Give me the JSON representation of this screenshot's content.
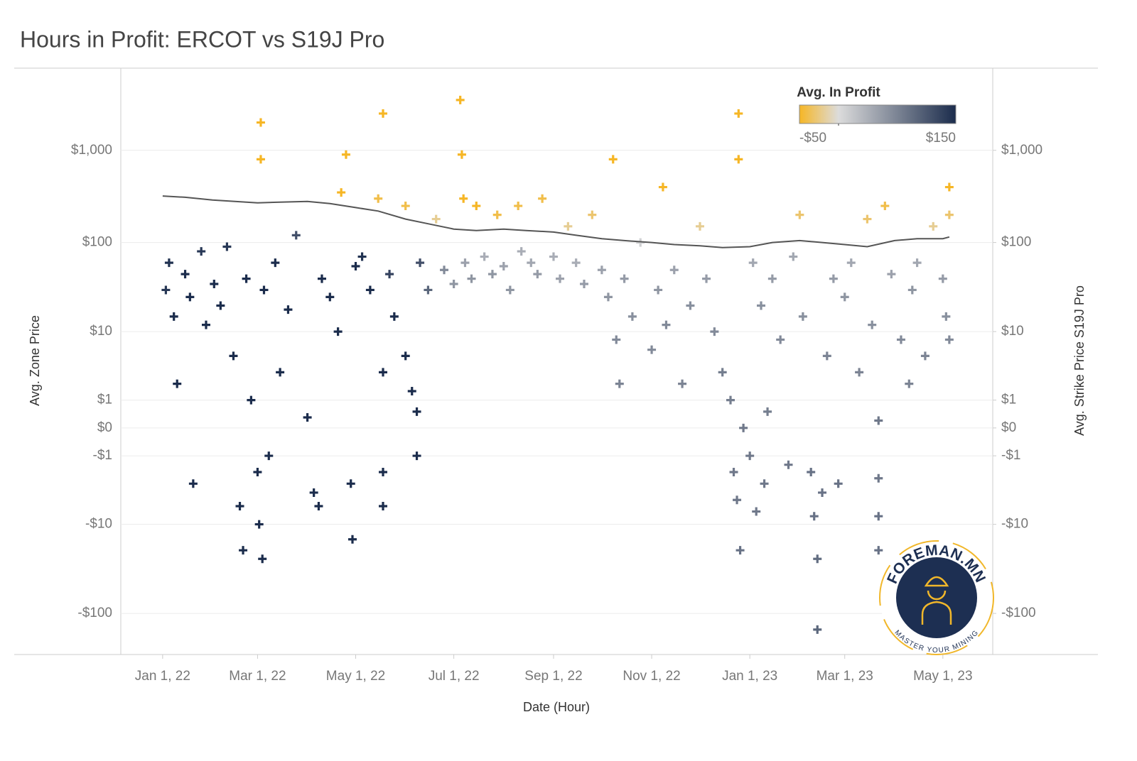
{
  "chart_data": {
    "type": "scatter",
    "title": "Hours in Profit: ERCOT vs S19J Pro",
    "x_label": "Date (Hour)",
    "y_label": "Avg. Zone Price",
    "y2_label": "Avg. Strike Price S19J Pro",
    "y_scale": "symlog",
    "grid": true,
    "xlim": [
      "2021-12-06",
      "2023-06-01"
    ],
    "xticks": [
      {
        "value": "2022-01-01",
        "label": "Jan 1, 22"
      },
      {
        "value": "2022-03-01",
        "label": "Mar 1, 22"
      },
      {
        "value": "2022-05-01",
        "label": "May 1, 22"
      },
      {
        "value": "2022-07-01",
        "label": "Jul 1, 22"
      },
      {
        "value": "2022-09-01",
        "label": "Sep 1, 22"
      },
      {
        "value": "2022-11-01",
        "label": "Nov 1, 22"
      },
      {
        "value": "2023-01-01",
        "label": "Jan 1, 23"
      },
      {
        "value": "2023-03-01",
        "label": "Mar 1, 23"
      },
      {
        "value": "2023-05-01",
        "label": "May 1, 23"
      }
    ],
    "ylim": [
      -280,
      7600
    ],
    "yticks": [
      {
        "value": 1000,
        "label": "$1,000"
      },
      {
        "value": 100,
        "label": "$100"
      },
      {
        "value": 10,
        "label": "$10"
      },
      {
        "value": 1,
        "label": "$1"
      },
      {
        "value": 0,
        "label": "$0"
      },
      {
        "value": -1,
        "label": "-$1"
      },
      {
        "value": -10,
        "label": "-$10"
      },
      {
        "value": -100,
        "label": "-$100"
      }
    ],
    "y2lim": [
      -280,
      7600
    ],
    "y2ticks": [
      {
        "value": 1000,
        "label": "$1,000"
      },
      {
        "value": 100,
        "label": "$100"
      },
      {
        "value": 10,
        "label": "$10"
      },
      {
        "value": 1,
        "label": "$1"
      },
      {
        "value": 0,
        "label": "$0"
      },
      {
        "value": -1,
        "label": "-$1"
      },
      {
        "value": -10,
        "label": "-$10"
      },
      {
        "value": -100,
        "label": "-$100"
      }
    ],
    "color_legend": {
      "title": "Avg. In Profit",
      "colors": [
        "#f6b625",
        "#dcdcdc",
        "#1b2c4c"
      ],
      "range": [
        {
          "value": -50,
          "label": "-$50"
        },
        {
          "value": 150,
          "label": "$150"
        }
      ],
      "mid": 0
    },
    "series": [
      {
        "name": "Avg. Zone Price",
        "x": [
          "2022-01-03",
          "2022-01-05",
          "2022-01-08",
          "2022-01-10",
          "2022-01-15",
          "2022-01-18",
          "2022-01-20",
          "2022-01-25",
          "2022-01-28",
          "2022-02-02",
          "2022-02-06",
          "2022-02-10",
          "2022-02-14",
          "2022-02-18",
          "2022-02-20",
          "2022-02-22",
          "2022-02-25",
          "2022-03-01",
          "2022-03-02",
          "2022-03-04",
          "2022-03-03",
          "2022-03-03",
          "2022-03-05",
          "2022-03-08",
          "2022-03-12",
          "2022-03-15",
          "2022-03-20",
          "2022-03-25",
          "2022-04-01",
          "2022-04-05",
          "2022-04-08",
          "2022-04-10",
          "2022-04-15",
          "2022-04-20",
          "2022-04-22",
          "2022-04-25",
          "2022-04-28",
          "2022-04-29",
          "2022-05-01",
          "2022-05-05",
          "2022-05-10",
          "2022-05-15",
          "2022-05-18",
          "2022-05-18",
          "2022-05-18",
          "2022-05-18",
          "2022-05-22",
          "2022-05-25",
          "2022-06-01",
          "2022-06-01",
          "2022-06-05",
          "2022-06-08",
          "2022-06-08",
          "2022-06-10",
          "2022-06-15",
          "2022-06-20",
          "2022-06-25",
          "2022-07-01",
          "2022-07-05",
          "2022-07-06",
          "2022-07-07",
          "2022-07-08",
          "2022-07-12",
          "2022-07-15",
          "2022-07-20",
          "2022-07-25",
          "2022-07-28",
          "2022-08-01",
          "2022-08-05",
          "2022-08-10",
          "2022-08-12",
          "2022-08-18",
          "2022-08-22",
          "2022-08-25",
          "2022-09-01",
          "2022-09-05",
          "2022-09-10",
          "2022-09-15",
          "2022-09-20",
          "2022-09-25",
          "2022-10-01",
          "2022-10-05",
          "2022-10-08",
          "2022-10-10",
          "2022-10-12",
          "2022-10-15",
          "2022-10-20",
          "2022-10-25",
          "2022-11-01",
          "2022-11-05",
          "2022-11-08",
          "2022-11-10",
          "2022-11-15",
          "2022-11-20",
          "2022-11-25",
          "2022-12-01",
          "2022-12-05",
          "2022-12-10",
          "2022-12-15",
          "2022-12-20",
          "2022-12-22",
          "2022-12-24",
          "2022-12-25",
          "2022-12-25",
          "2022-12-26",
          "2022-12-28",
          "2023-01-01",
          "2023-01-03",
          "2023-01-05",
          "2023-01-08",
          "2023-01-10",
          "2023-01-12",
          "2023-01-15",
          "2023-01-20",
          "2023-01-25",
          "2023-01-28",
          "2023-02-01",
          "2023-02-03",
          "2023-02-08",
          "2023-02-10",
          "2023-02-12",
          "2023-02-12",
          "2023-02-15",
          "2023-02-18",
          "2023-02-22",
          "2023-02-25",
          "2023-03-01",
          "2023-03-05",
          "2023-03-10",
          "2023-03-15",
          "2023-03-18",
          "2023-03-22",
          "2023-03-22",
          "2023-03-22",
          "2023-03-22",
          "2023-03-26",
          "2023-03-30",
          "2023-04-05",
          "2023-04-10",
          "2023-04-12",
          "2023-04-15",
          "2023-04-20",
          "2023-04-25",
          "2023-05-01",
          "2023-05-03",
          "2023-05-05",
          "2023-05-05",
          "2023-05-05"
        ],
        "values": [
          30,
          60,
          15,
          2,
          45,
          25,
          -3,
          80,
          12,
          35,
          20,
          90,
          5,
          -6,
          -20,
          40,
          1,
          -2,
          -10,
          -25,
          2000,
          800,
          30,
          -1,
          60,
          3,
          18,
          120,
          0.3,
          -4,
          -6,
          40,
          25,
          10,
          350,
          900,
          -3,
          -15,
          55,
          70,
          30,
          300,
          2500,
          3,
          -2,
          -6,
          45,
          15,
          250,
          5,
          1.5,
          0.5,
          -1,
          60,
          30,
          180,
          50,
          35,
          3500,
          900,
          300,
          60,
          40,
          250,
          70,
          45,
          200,
          55,
          30,
          250,
          80,
          60,
          45,
          300,
          70,
          40,
          150,
          60,
          35,
          200,
          50,
          25,
          800,
          8,
          2,
          40,
          15,
          100,
          6,
          30,
          400,
          12,
          50,
          2,
          20,
          150,
          40,
          10,
          3,
          1,
          -2,
          -5,
          2500,
          800,
          -20,
          0,
          -1,
          60,
          -7,
          20,
          -3,
          0.5,
          40,
          8,
          -1.5,
          70,
          200,
          15,
          -2,
          -8,
          -25,
          -150,
          -4,
          5,
          40,
          -3,
          25,
          60,
          3,
          180,
          12,
          0.2,
          -2.5,
          -8,
          -20,
          250,
          45,
          8,
          2,
          30,
          60,
          5,
          150,
          40,
          15,
          400,
          200,
          8
        ],
        "profit": [
          140,
          145,
          150,
          150,
          150,
          150,
          150,
          140,
          150,
          150,
          150,
          140,
          150,
          150,
          150,
          150,
          150,
          150,
          150,
          150,
          -50,
          -50,
          150,
          150,
          150,
          150,
          150,
          120,
          150,
          150,
          150,
          150,
          150,
          150,
          -50,
          -50,
          150,
          150,
          150,
          145,
          150,
          -40,
          -50,
          150,
          150,
          150,
          130,
          150,
          -40,
          150,
          150,
          150,
          150,
          120,
          100,
          -20,
          70,
          60,
          -50,
          -50,
          -50,
          50,
          60,
          -50,
          40,
          60,
          -40,
          50,
          60,
          -40,
          40,
          45,
          55,
          -40,
          40,
          50,
          -20,
          40,
          55,
          -30,
          50,
          60,
          -50,
          70,
          75,
          55,
          65,
          10,
          70,
          60,
          -50,
          70,
          50,
          75,
          65,
          -20,
          55,
          70,
          80,
          80,
          85,
          85,
          -50,
          -50,
          90,
          85,
          85,
          45,
          85,
          65,
          85,
          80,
          55,
          70,
          85,
          45,
          -30,
          65,
          90,
          90,
          95,
          100,
          90,
          75,
          55,
          90,
          60,
          45,
          75,
          -30,
          65,
          85,
          85,
          90,
          90,
          -40,
          50,
          70,
          75,
          60,
          45,
          75,
          -20,
          55,
          65,
          -50,
          -30,
          70
        ]
      },
      {
        "name": "Avg. Strike Price S19J Pro",
        "axis": "y2",
        "color": "#555555",
        "x": [
          "2022-01-01",
          "2022-01-15",
          "2022-02-01",
          "2022-02-15",
          "2022-03-01",
          "2022-03-15",
          "2022-04-01",
          "2022-04-15",
          "2022-05-01",
          "2022-05-15",
          "2022-06-01",
          "2022-06-15",
          "2022-07-01",
          "2022-07-15",
          "2022-08-01",
          "2022-08-15",
          "2022-09-01",
          "2022-09-15",
          "2022-10-01",
          "2022-10-15",
          "2022-11-01",
          "2022-11-15",
          "2022-12-01",
          "2022-12-15",
          "2023-01-01",
          "2023-01-15",
          "2023-02-01",
          "2023-02-15",
          "2023-03-01",
          "2023-03-15",
          "2023-04-01",
          "2023-04-15",
          "2023-05-01",
          "2023-05-05"
        ],
        "values": [
          320,
          310,
          290,
          280,
          270,
          275,
          280,
          265,
          240,
          220,
          180,
          160,
          140,
          135,
          140,
          135,
          130,
          120,
          110,
          105,
          100,
          95,
          92,
          88,
          90,
          100,
          105,
          100,
          95,
          90,
          105,
          110,
          110,
          115
        ]
      }
    ],
    "logo": {
      "top": "FOREMAN.MN",
      "bottom": "MASTER YOUR MINING"
    }
  }
}
